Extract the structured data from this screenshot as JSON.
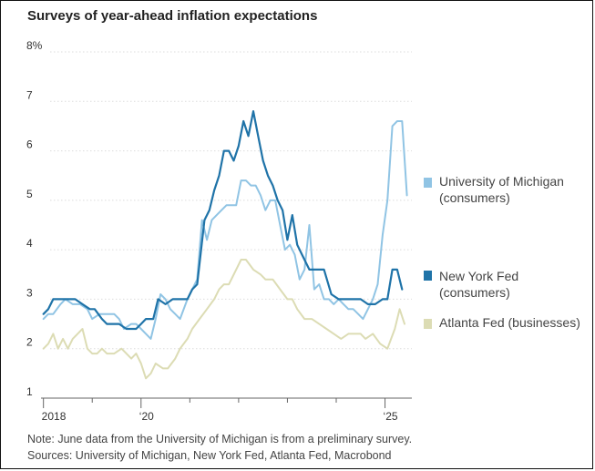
{
  "chart_data": {
    "type": "line",
    "title": "Surveys of year-ahead inflation expectations",
    "ylim": [
      1,
      8
    ],
    "y_ticks": [
      1,
      2,
      3,
      4,
      5,
      6,
      7,
      8
    ],
    "y_tick_labels": [
      "1",
      "2",
      "3",
      "4",
      "5",
      "6",
      "7",
      "8%"
    ],
    "x_range": [
      2017.95,
      2025.55
    ],
    "x_tick_labels": [
      {
        "year": 2018,
        "label": "2018"
      },
      {
        "year": 2020,
        "label": "‘20"
      },
      {
        "year": 2025,
        "label": "‘25"
      }
    ],
    "x_minor_years": [
      2019,
      2021,
      2022,
      2023,
      2024
    ],
    "series": [
      {
        "name": "University of Michigan (consumers)",
        "label_lines": [
          "University of Michigan",
          "(consumers)"
        ],
        "color": "#90c4e4",
        "x": [
          2018.0,
          2018.1,
          2018.2,
          2018.35,
          2018.45,
          2018.6,
          2018.75,
          2018.9,
          2019.0,
          2019.15,
          2019.3,
          2019.45,
          2019.55,
          2019.65,
          2019.8,
          2019.9,
          2020.0,
          2020.1,
          2020.2,
          2020.3,
          2020.4,
          2020.5,
          2020.6,
          2020.7,
          2020.8,
          2020.95,
          2021.05,
          2021.15,
          2021.25,
          2021.35,
          2021.45,
          2021.55,
          2021.65,
          2021.75,
          2021.85,
          2021.95,
          2022.05,
          2022.15,
          2022.25,
          2022.35,
          2022.45,
          2022.55,
          2022.65,
          2022.75,
          2022.85,
          2022.95,
          2023.05,
          2023.15,
          2023.25,
          2023.35,
          2023.45,
          2023.55,
          2023.65,
          2023.75,
          2023.85,
          2023.95,
          2024.05,
          2024.15,
          2024.25,
          2024.35,
          2024.45,
          2024.55,
          2024.65,
          2024.75,
          2024.85,
          2024.95,
          2025.05,
          2025.15,
          2025.25,
          2025.35,
          2025.45
        ],
        "values": [
          2.6,
          2.7,
          2.7,
          2.9,
          3.0,
          2.9,
          2.9,
          2.8,
          2.6,
          2.7,
          2.7,
          2.7,
          2.6,
          2.4,
          2.5,
          2.5,
          2.4,
          2.3,
          2.2,
          2.6,
          3.1,
          3.0,
          2.8,
          2.7,
          2.6,
          3.0,
          3.2,
          3.4,
          4.6,
          4.2,
          4.6,
          4.7,
          4.8,
          4.9,
          4.9,
          4.9,
          5.4,
          5.4,
          5.3,
          5.3,
          5.1,
          4.8,
          5.0,
          5.0,
          4.5,
          4.0,
          4.1,
          3.9,
          3.4,
          3.6,
          4.5,
          3.2,
          3.3,
          3.0,
          3.0,
          2.9,
          3.0,
          2.9,
          2.8,
          2.8,
          2.7,
          2.6,
          2.8,
          3.0,
          3.3,
          4.3,
          5.0,
          6.5,
          6.6,
          6.6,
          5.1
        ]
      },
      {
        "name": "New York Fed (consumers)",
        "label_lines": [
          "New York Fed",
          "(consumers)"
        ],
        "color": "#1f73a8",
        "x": [
          2018.0,
          2018.1,
          2018.2,
          2018.3,
          2018.5,
          2018.65,
          2018.8,
          2018.95,
          2019.05,
          2019.2,
          2019.3,
          2019.45,
          2019.55,
          2019.7,
          2019.8,
          2019.9,
          2020.0,
          2020.1,
          2020.25,
          2020.35,
          2020.5,
          2020.65,
          2020.8,
          2020.95,
          2021.05,
          2021.15,
          2021.3,
          2021.4,
          2021.5,
          2021.6,
          2021.7,
          2021.8,
          2021.9,
          2022.0,
          2022.1,
          2022.2,
          2022.3,
          2022.4,
          2022.5,
          2022.6,
          2022.7,
          2022.8,
          2022.9,
          2023.0,
          2023.1,
          2023.2,
          2023.3,
          2023.45,
          2023.6,
          2023.75,
          2023.9,
          2024.05,
          2024.2,
          2024.35,
          2024.5,
          2024.65,
          2024.8,
          2024.95,
          2025.05,
          2025.15,
          2025.25,
          2025.35
        ],
        "values": [
          2.7,
          2.8,
          3.0,
          3.0,
          3.0,
          3.0,
          2.9,
          2.8,
          2.8,
          2.6,
          2.5,
          2.5,
          2.5,
          2.4,
          2.4,
          2.4,
          2.5,
          2.6,
          2.6,
          3.0,
          2.9,
          3.0,
          3.0,
          3.0,
          3.2,
          3.3,
          4.6,
          4.8,
          5.2,
          5.5,
          6.0,
          6.0,
          5.8,
          6.1,
          6.6,
          6.3,
          6.8,
          6.3,
          5.8,
          5.5,
          5.3,
          5.0,
          4.8,
          4.2,
          4.7,
          4.1,
          3.9,
          3.6,
          3.6,
          3.6,
          3.1,
          3.0,
          3.0,
          3.0,
          3.0,
          2.9,
          2.9,
          3.0,
          3.0,
          3.6,
          3.6,
          3.2
        ]
      },
      {
        "name": "Atlanta Fed (businesses)",
        "label_lines": [
          "Atlanta Fed (businesses)"
        ],
        "color": "#dcdcb4",
        "x": [
          2018.0,
          2018.1,
          2018.2,
          2018.3,
          2018.4,
          2018.5,
          2018.6,
          2018.7,
          2018.8,
          2018.9,
          2019.0,
          2019.1,
          2019.2,
          2019.3,
          2019.45,
          2019.6,
          2019.7,
          2019.8,
          2019.9,
          2020.0,
          2020.1,
          2020.2,
          2020.3,
          2020.45,
          2020.55,
          2020.7,
          2020.8,
          2020.95,
          2021.05,
          2021.2,
          2021.35,
          2021.5,
          2021.6,
          2021.7,
          2021.8,
          2021.95,
          2022.05,
          2022.15,
          2022.3,
          2022.45,
          2022.55,
          2022.7,
          2022.85,
          2023.0,
          2023.1,
          2023.2,
          2023.35,
          2023.5,
          2023.65,
          2023.8,
          2023.95,
          2024.1,
          2024.25,
          2024.4,
          2024.5,
          2024.6,
          2024.75,
          2024.9,
          2025.05,
          2025.2,
          2025.3,
          2025.4
        ],
        "values": [
          2.0,
          2.1,
          2.3,
          2.0,
          2.2,
          2.0,
          2.2,
          2.3,
          2.4,
          2.0,
          1.9,
          1.9,
          2.0,
          1.9,
          1.9,
          2.0,
          1.9,
          1.8,
          1.9,
          1.7,
          1.4,
          1.5,
          1.7,
          1.6,
          1.6,
          1.8,
          2.0,
          2.2,
          2.4,
          2.6,
          2.8,
          3.0,
          3.2,
          3.3,
          3.3,
          3.6,
          3.8,
          3.8,
          3.6,
          3.5,
          3.4,
          3.4,
          3.2,
          3.0,
          3.0,
          2.8,
          2.6,
          2.6,
          2.5,
          2.4,
          2.3,
          2.2,
          2.3,
          2.3,
          2.3,
          2.2,
          2.3,
          2.1,
          2.0,
          2.4,
          2.8,
          2.5
        ]
      }
    ]
  },
  "footnotes": {
    "note": "Note: June data from the University of Michigan is from a preliminary survey.",
    "sources": "Sources: University of Michigan, New York Fed, Atlanta Fed, Macrobond"
  }
}
